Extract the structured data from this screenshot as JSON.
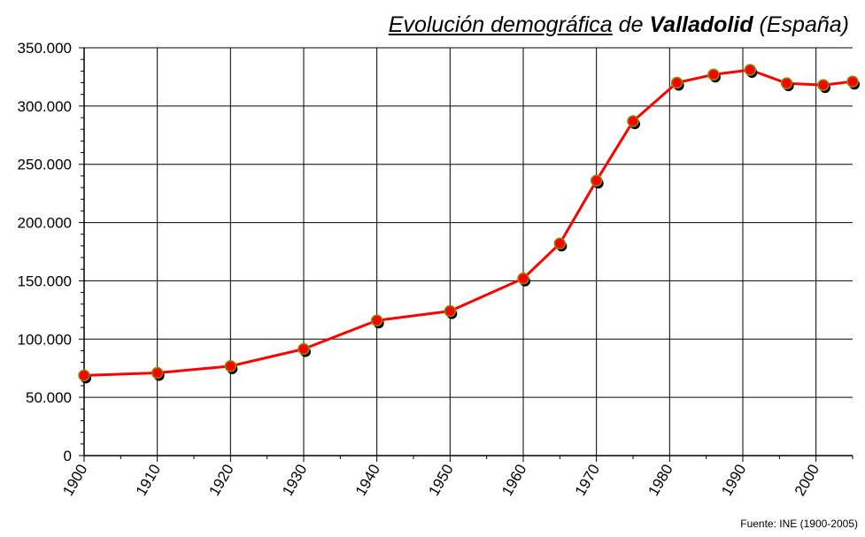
{
  "title": {
    "part1": "Evolución demográfica",
    "part2": "de",
    "part3": "Valladolid",
    "part4": "(España)"
  },
  "source": "Fuente: INE (1900-2005)",
  "colors": {
    "line": "#ff0000",
    "marker_fill": "#ff0000",
    "marker_border": "#8b8b00",
    "shadow": "#000000",
    "grid": "#000000"
  },
  "chart_data": {
    "type": "line",
    "title": "Evolución demográfica de Valladolid (España)",
    "xlabel": "",
    "ylabel": "",
    "xlim": [
      1900,
      2005
    ],
    "ylim": [
      0,
      350000
    ],
    "grid": true,
    "x_ticks": [
      1900,
      1910,
      1920,
      1930,
      1940,
      1950,
      1960,
      1970,
      1980,
      1990,
      2000
    ],
    "x_tick_labels": [
      "1900",
      "1910",
      "1920",
      "1930",
      "1940",
      "1950",
      "1960",
      "1970",
      "1980",
      "1990",
      "2000"
    ],
    "y_ticks": [
      0,
      50000,
      100000,
      150000,
      200000,
      250000,
      300000,
      350000
    ],
    "y_tick_labels": [
      "0",
      "50.000",
      "100.000",
      "150.000",
      "200.000",
      "250.000",
      "300.000",
      "350.000"
    ],
    "series": [
      {
        "x": [
          1900,
          1910,
          1920,
          1930,
          1940,
          1950,
          1960,
          1965,
          1970,
          1975,
          1981,
          1986,
          1991,
          1996,
          2001,
          2005
        ],
        "values": [
          68800,
          71000,
          76800,
          91500,
          116000,
          124000,
          152000,
          182000,
          236000,
          287000,
          320000,
          327000,
          331000,
          319500,
          318000,
          321000
        ]
      }
    ]
  }
}
